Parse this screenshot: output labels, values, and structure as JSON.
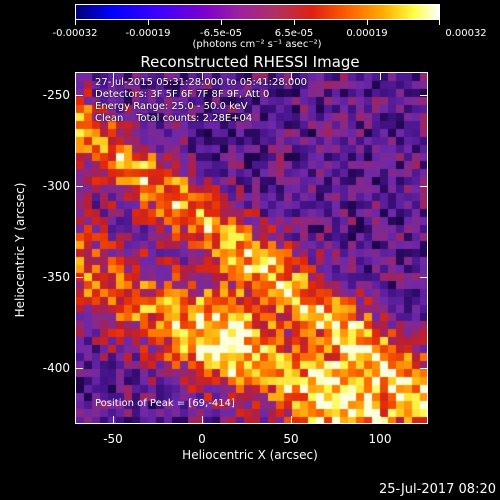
{
  "colorbar": {
    "ticks": [
      "-0.00032",
      "-0.00019",
      "-6.5e-05",
      "6.5e-05",
      "0.00019",
      "0.00032"
    ],
    "units": "(photons cm⁻² s⁻¹ asec⁻²)"
  },
  "title": "Reconstructed RHESSI Image",
  "info": {
    "line1": "27-Jul-2015 05:31:28.000 to 05:41:28.000",
    "line2": "Detectors: 3F 5F 6F 7F 8F 9F, Att 0",
    "line3": "Energy Range: 25.0 - 50.0 keV",
    "line4": "Clean    Total counts: 2.28E+04"
  },
  "peak": "Position of Peak = [69,-414]",
  "xaxis": {
    "label": "Heliocentric X (arcsec)",
    "ticks": [
      "-50",
      "0",
      "50",
      "100"
    ]
  },
  "yaxis": {
    "label": "Heliocentric Y (arcsec)",
    "ticks": [
      "-250",
      "-300",
      "-350",
      "-400"
    ]
  },
  "footer": "25-Jul-2017 08:20",
  "colors": {
    "background": "#000000",
    "text": "#ffffff"
  }
}
